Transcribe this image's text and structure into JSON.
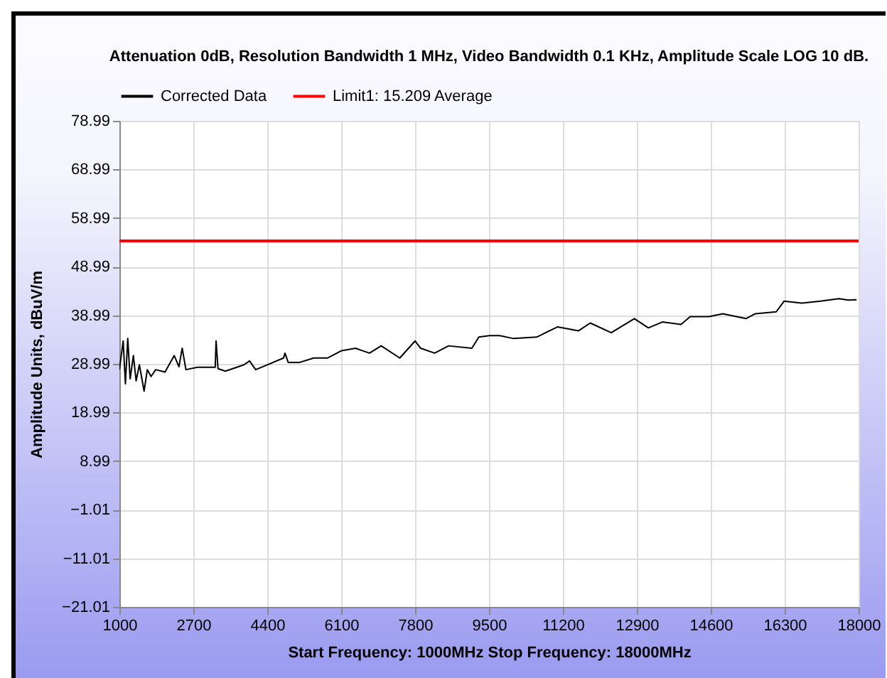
{
  "chart_data": {
    "type": "line",
    "title": "Attenuation 0dB, Resolution Bandwidth 1 MHz, Video Bandwidth 0.1 KHz, Amplitude Scale LOG 10 dB.",
    "xlabel": "Start Frequency: 1000MHz    Stop Frequency: 18000MHz",
    "ylabel": "Amplitude Units, dBuV/m",
    "series": [
      {
        "name": "Corrected Data",
        "color": "#000000",
        "x": [
          1000,
          1087,
          1138,
          1192,
          1247,
          1321,
          1385,
          1459,
          1568,
          1642,
          1728,
          1834,
          2049,
          2261,
          2370,
          2444,
          2530,
          2796,
          3204,
          3223,
          3268,
          3438,
          3865,
          3993,
          4134,
          4401,
          4776,
          4808,
          4882,
          5148,
          5469,
          5790,
          6110,
          6431,
          6752,
          7021,
          7448,
          7801,
          7929,
          8250,
          8571,
          9106,
          9267,
          9511,
          9746,
          10066,
          10598,
          11080,
          11561,
          11830,
          12311,
          12844,
          13165,
          13486,
          13916,
          14127,
          14557,
          14878,
          15410,
          15625,
          16106,
          16289,
          16693,
          17121,
          17548,
          17763,
          17955
        ],
        "values": [
          27.8,
          33.7,
          24.9,
          34.2,
          25.9,
          30.7,
          25.5,
          28.8,
          23.4,
          27.8,
          26.4,
          27.8,
          27.3,
          30.7,
          28.4,
          32.2,
          27.8,
          28.3,
          28.3,
          33.7,
          28.0,
          27.5,
          28.8,
          29.6,
          27.8,
          28.8,
          30.2,
          31.2,
          29.3,
          29.3,
          30.2,
          30.2,
          31.7,
          32.2,
          31.2,
          32.7,
          30.2,
          33.7,
          32.2,
          31.2,
          32.7,
          32.2,
          34.5,
          34.8,
          34.8,
          34.2,
          34.5,
          36.6,
          35.8,
          37.4,
          35.4,
          38.3,
          36.4,
          37.6,
          37.1,
          38.7,
          38.7,
          39.3,
          38.3,
          39.3,
          39.7,
          41.9,
          41.5,
          41.9,
          42.4,
          42.1,
          42.2
        ]
      },
      {
        "name": "Limit1: 15.209 Average",
        "color": "#ff0000",
        "x": [
          1000,
          18000
        ],
        "values": [
          54.3,
          54.3
        ]
      }
    ],
    "xlim": [
      1000,
      18000
    ],
    "xticks": [
      1000,
      2700,
      4400,
      6100,
      7800,
      9500,
      11200,
      12900,
      14600,
      16300,
      18000
    ],
    "ylim": [
      -21.01,
      78.99
    ],
    "yticks": [
      -21.01,
      -11.01,
      -1.01,
      8.99,
      18.99,
      28.99,
      38.99,
      48.99,
      58.99,
      68.99,
      78.99
    ],
    "grid": true,
    "legend": "top"
  }
}
